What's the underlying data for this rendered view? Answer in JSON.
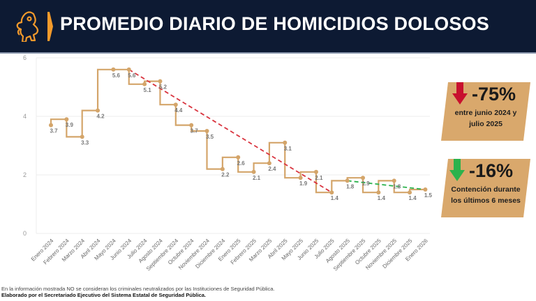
{
  "header": {
    "title": "PROMEDIO DIARIO DE HOMICIDIOS DOLOSOS",
    "logo": "lion-crest-icon",
    "background": "#0d1a33",
    "accent": "#f39a2b"
  },
  "kpis": [
    {
      "value": "-75%",
      "line1": "entre junio 2024 y",
      "line2": "julio 2025",
      "arrow": "down-arrow-red",
      "arrow_color": "#c8102e",
      "box_color": "#d9a86c"
    },
    {
      "value": "-16%",
      "line1": "Contención durante",
      "line2": "los últimos 6 meses",
      "arrow": "down-arrow-green",
      "arrow_color": "#2bb24c",
      "box_color": "#d9a86c"
    }
  ],
  "footnotes": {
    "note": "En la información mostrada NO se consideran los criminales neutralizados por las Instituciones de Seguridad Pública.",
    "source": "Elaborado por el Secretariado Ejecutivo del Sistema Estatal de Seguridad Pública."
  },
  "chart_data": {
    "type": "line",
    "title": "PROMEDIO DIARIO DE HOMICIDIOS DOLOSOS",
    "xlabel": "",
    "ylabel": "",
    "ylim": [
      0,
      6
    ],
    "yticks": [
      0,
      2,
      4,
      6
    ],
    "grid": true,
    "line_shape": "step (vertical then horizontal)",
    "categories": [
      "Enero 2024",
      "Febrero 2024",
      "Marzo 2024",
      "Abril 2024",
      "Mayo 2024",
      "Junio 2024",
      "Julio 2024",
      "Agosto 2024",
      "Septiembre 2024",
      "Octubre 2024",
      "Noviembre 2024",
      "Diciembre 2024",
      "Enero 2025",
      "Febrero 2025",
      "Marzo 2025",
      "Abril 2025",
      "Mayo 2025",
      "Junio 2025",
      "Julio 2025",
      "Agosto 2025",
      "Septiembre 2025",
      "Octubre 2025",
      "Noviembre 2025",
      "Diciembre 2025",
      "Enero 2026"
    ],
    "series": [
      {
        "name": "Promedio diario",
        "color": "#d4a56a",
        "values": [
          3.7,
          3.9,
          3.3,
          4.2,
          5.6,
          5.6,
          5.1,
          5.2,
          4.4,
          3.7,
          3.5,
          2.2,
          2.6,
          2.1,
          2.4,
          3.1,
          1.9,
          2.1,
          1.4,
          1.8,
          1.9,
          1.4,
          1.8,
          1.4,
          1.5
        ]
      }
    ],
    "trendlines": [
      {
        "name": "Tendencia junio 2024 - julio 2025",
        "color": "#d9343f",
        "style": "dashed",
        "from": [
          "Junio 2024",
          5.6
        ],
        "to": [
          "Julio 2025",
          1.4
        ]
      },
      {
        "name": "Contención últimos 6 meses",
        "color": "#2bb24c",
        "style": "dashed",
        "from": [
          "Agosto 2025",
          1.8
        ],
        "to": [
          "Enero 2026",
          1.5
        ]
      }
    ]
  }
}
